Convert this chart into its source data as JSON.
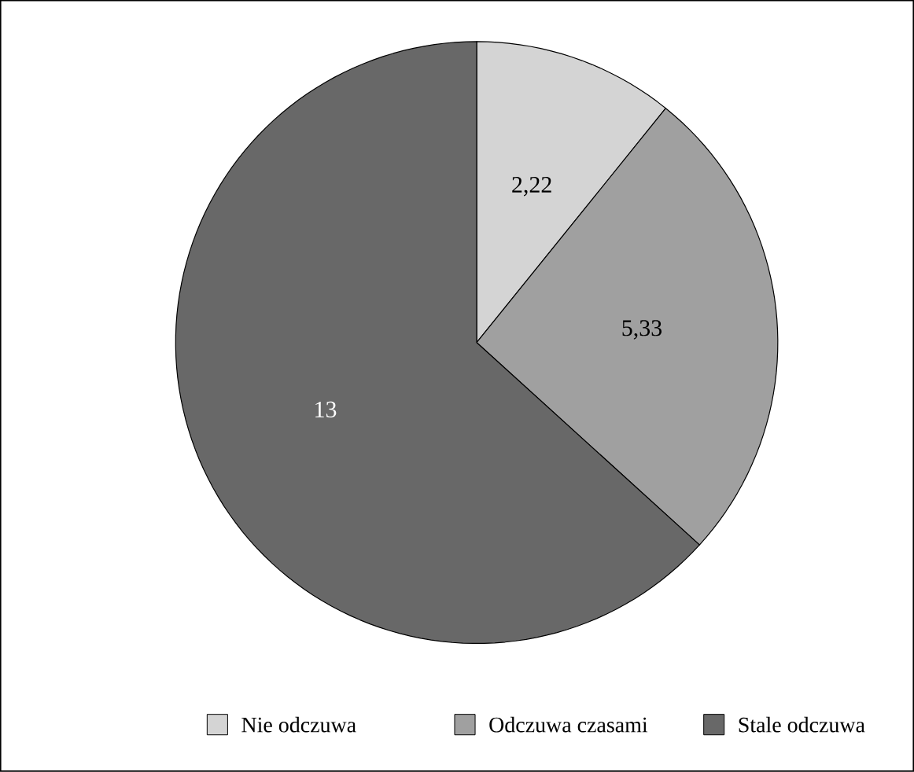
{
  "chart_data": {
    "type": "pie",
    "categories": [
      "Nie odczuwa",
      "Odczuwa czasami",
      "Stale odczuwa"
    ],
    "values": [
      2.22,
      5.33,
      13
    ],
    "colors": [
      "#d4d4d4",
      "#a0a0a0",
      "#686868"
    ],
    "value_labels": [
      "2,22",
      "5,33",
      "13"
    ],
    "legend": "bottom"
  }
}
